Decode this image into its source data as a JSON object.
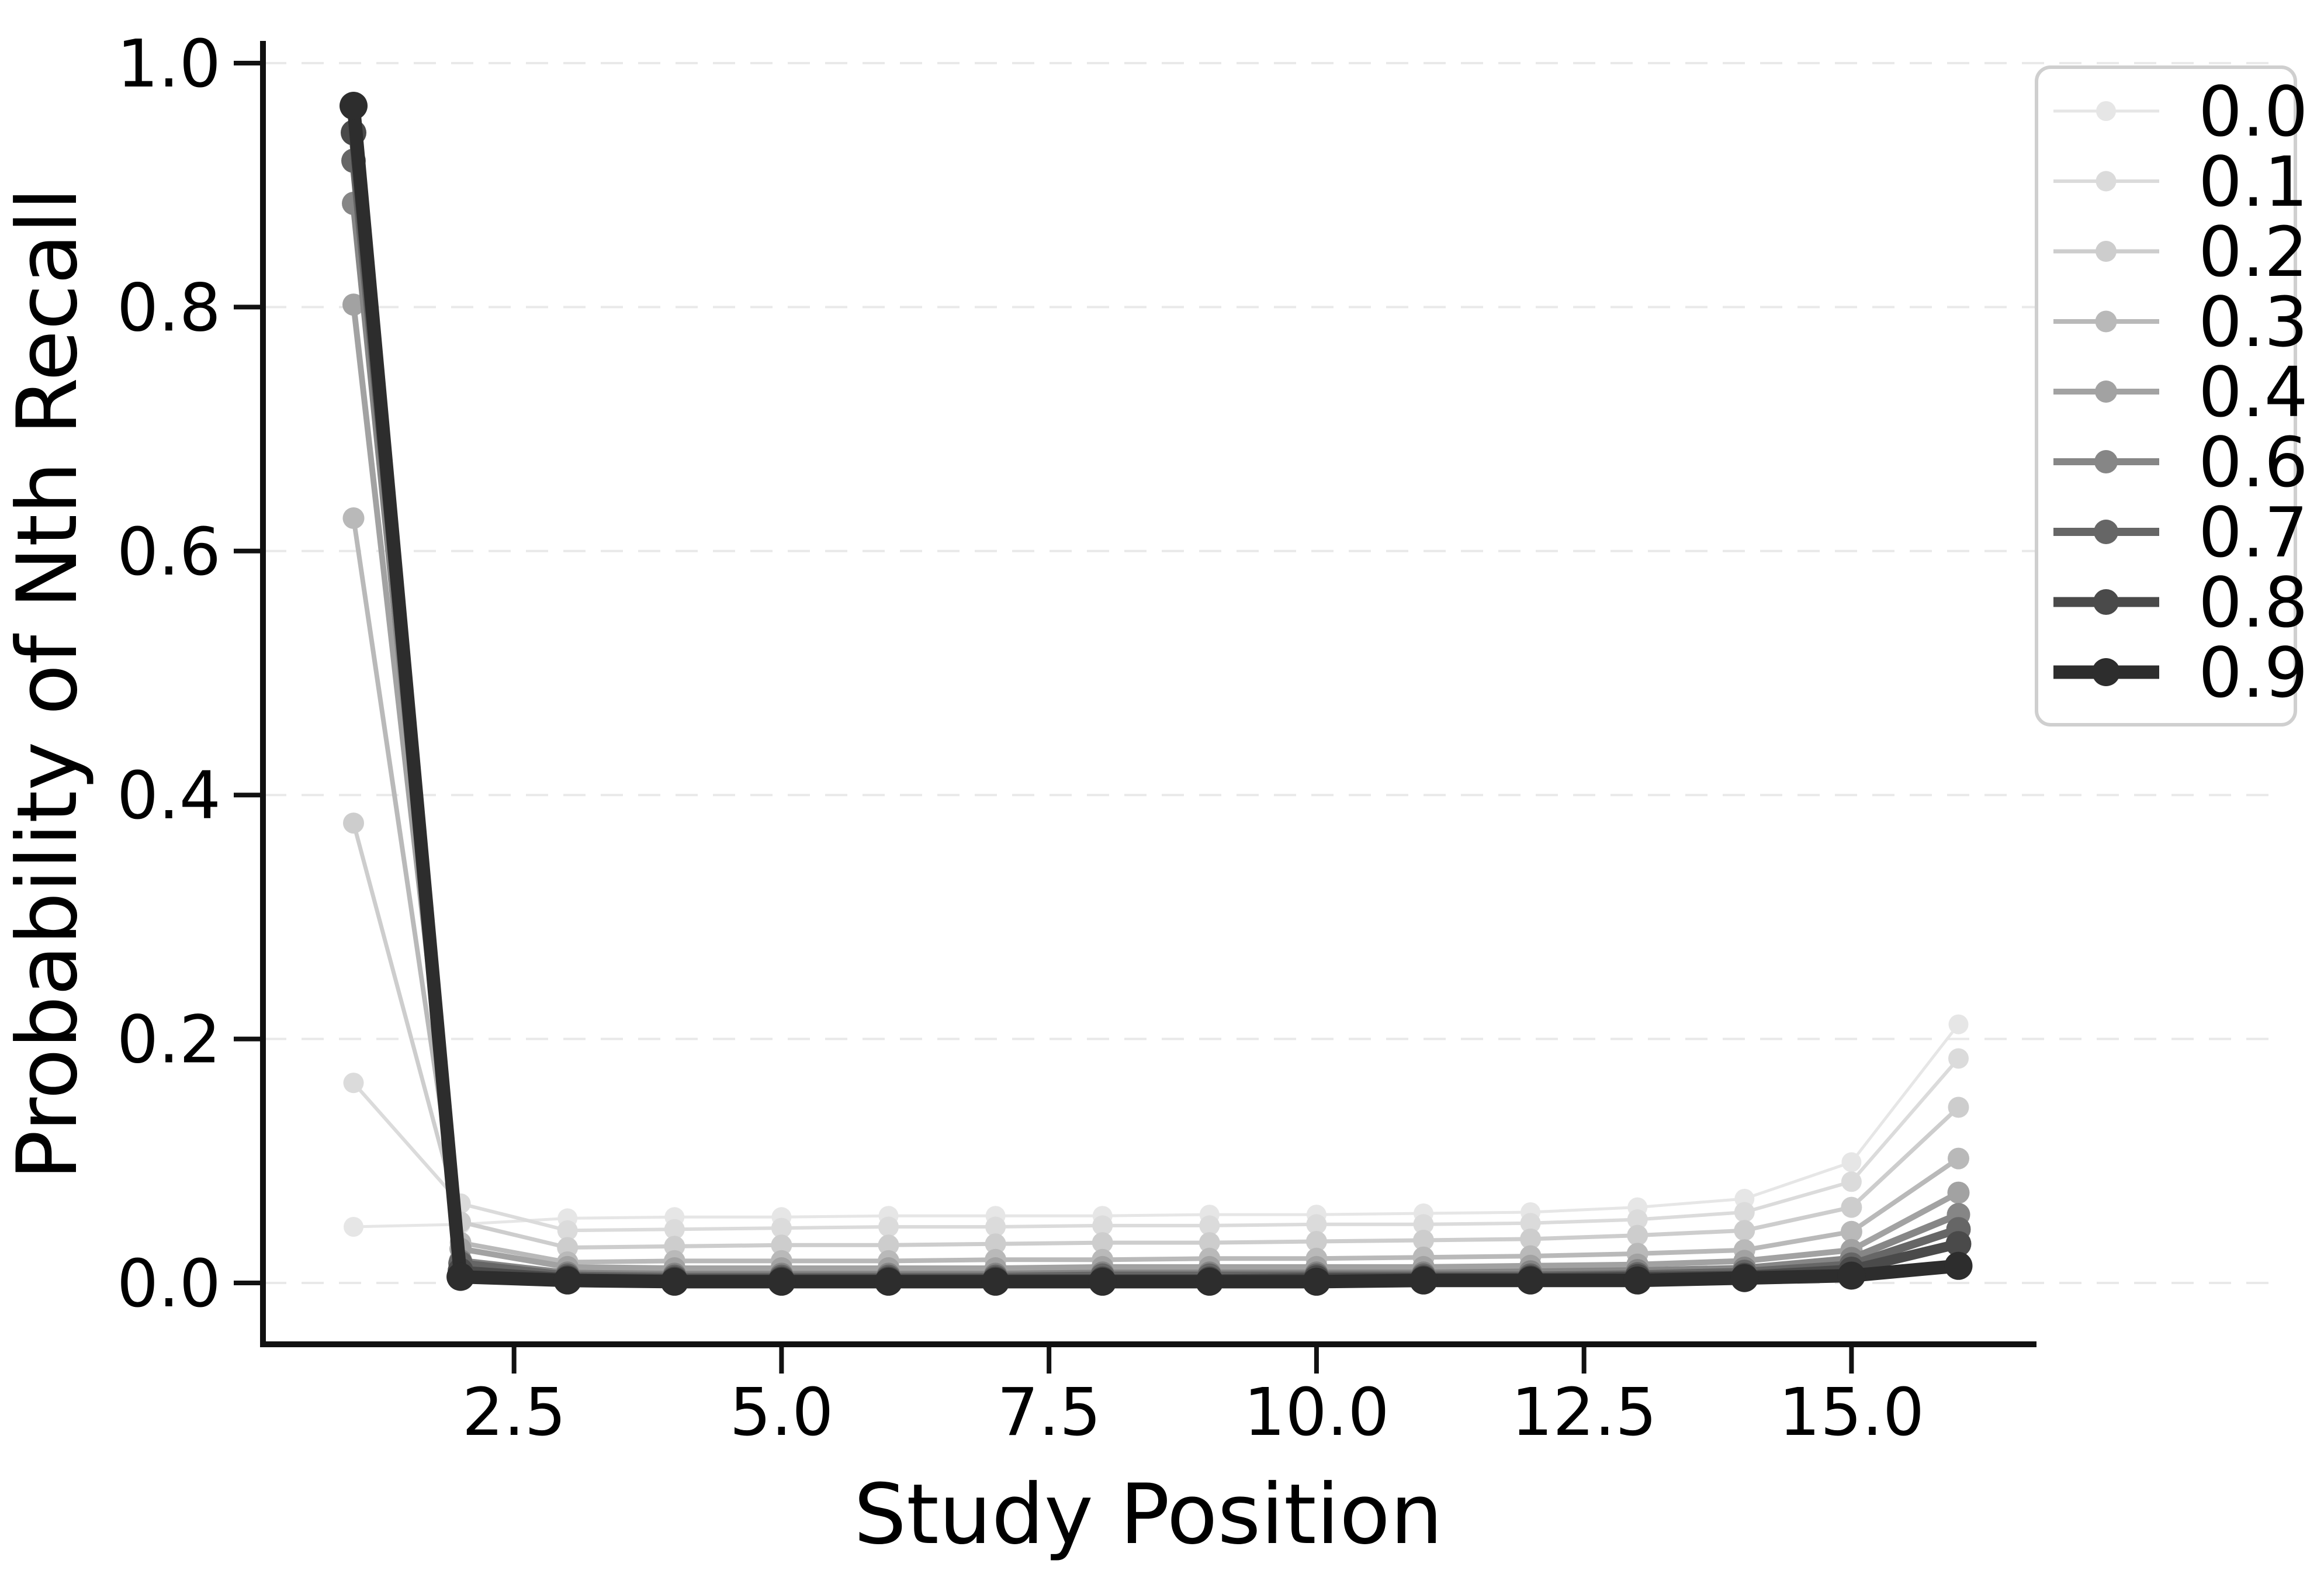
{
  "figure": {
    "background": "#ffffff",
    "title": ""
  },
  "chart_data": {
    "type": "line",
    "title": "",
    "xlabel": "Study Position",
    "ylabel": "Probability of Nth Recall",
    "x": [
      1,
      2,
      3,
      4,
      5,
      6,
      7,
      8,
      9,
      10,
      11,
      12,
      13,
      14,
      15,
      16
    ],
    "xlim": [
      0.25,
      16.75
    ],
    "ylim": [
      0.0,
      1.0
    ],
    "xticks": [
      2.5,
      5.0,
      7.5,
      10.0,
      12.5,
      15.0
    ],
    "xtick_labels": [
      "2.5",
      "5.0",
      "7.5",
      "10.0",
      "12.5",
      "15.0"
    ],
    "yticks": [
      0.0,
      0.2,
      0.4,
      0.6,
      0.8,
      1.0
    ],
    "ytick_labels": [
      "0.0",
      "0.2",
      "0.4",
      "0.6",
      "0.8",
      "1.0"
    ],
    "grid": "horizontal-dashed",
    "grid_color": "#e9e9e9",
    "legend_position": "upper-right",
    "legend_border_color": "#cfcfcf",
    "axis_color": "#111111",
    "series": [
      {
        "name": "0.0",
        "color": "#e6e6e6",
        "linewidth": 5,
        "marker_radius": 17,
        "values": [
          0.046,
          0.048,
          0.053,
          0.054,
          0.054,
          0.055,
          0.055,
          0.055,
          0.056,
          0.056,
          0.057,
          0.058,
          0.062,
          0.069,
          0.099,
          0.212
        ]
      },
      {
        "name": "0.1",
        "color": "#dbdbdb",
        "linewidth": 6,
        "marker_radius": 17.5,
        "values": [
          0.164,
          0.065,
          0.043,
          0.044,
          0.045,
          0.046,
          0.046,
          0.047,
          0.047,
          0.048,
          0.048,
          0.049,
          0.052,
          0.058,
          0.083,
          0.184
        ]
      },
      {
        "name": "0.2",
        "color": "#cdcdcd",
        "linewidth": 7,
        "marker_radius": 18,
        "values": [
          0.377,
          0.05,
          0.029,
          0.03,
          0.031,
          0.031,
          0.032,
          0.033,
          0.033,
          0.034,
          0.035,
          0.036,
          0.039,
          0.043,
          0.062,
          0.144
        ]
      },
      {
        "name": "0.3",
        "color": "#b9b9b9",
        "linewidth": 8,
        "marker_radius": 18.5,
        "values": [
          0.627,
          0.033,
          0.017,
          0.018,
          0.018,
          0.018,
          0.019,
          0.019,
          0.02,
          0.02,
          0.021,
          0.022,
          0.024,
          0.027,
          0.042,
          0.102
        ]
      },
      {
        "name": "0.4",
        "color": "#a2a2a2",
        "linewidth": 10,
        "marker_radius": 19,
        "values": [
          0.802,
          0.028,
          0.013,
          0.012,
          0.012,
          0.012,
          0.012,
          0.013,
          0.013,
          0.013,
          0.013,
          0.014,
          0.015,
          0.018,
          0.027,
          0.074
        ]
      },
      {
        "name": "0.6",
        "color": "#868686",
        "linewidth": 12,
        "marker_radius": 20,
        "values": [
          0.885,
          0.018,
          0.008,
          0.007,
          0.007,
          0.007,
          0.007,
          0.008,
          0.008,
          0.008,
          0.008,
          0.009,
          0.01,
          0.012,
          0.02,
          0.056
        ]
      },
      {
        "name": "0.7",
        "color": "#666666",
        "linewidth": 14,
        "marker_radius": 21,
        "values": [
          0.92,
          0.016,
          0.006,
          0.005,
          0.005,
          0.005,
          0.005,
          0.006,
          0.006,
          0.006,
          0.006,
          0.006,
          0.007,
          0.009,
          0.015,
          0.044
        ]
      },
      {
        "name": "0.8",
        "color": "#4a4a4a",
        "linewidth": 17,
        "marker_radius": 22,
        "values": [
          0.943,
          0.01,
          0.004,
          0.003,
          0.003,
          0.003,
          0.003,
          0.003,
          0.003,
          0.004,
          0.004,
          0.004,
          0.005,
          0.006,
          0.011,
          0.032
        ]
      },
      {
        "name": "0.9",
        "color": "#2d2d2d",
        "linewidth": 23,
        "marker_radius": 24,
        "values": [
          0.965,
          0.005,
          0.002,
          0.001,
          0.001,
          0.001,
          0.001,
          0.001,
          0.001,
          0.001,
          0.002,
          0.002,
          0.002,
          0.004,
          0.006,
          0.014
        ]
      }
    ]
  }
}
